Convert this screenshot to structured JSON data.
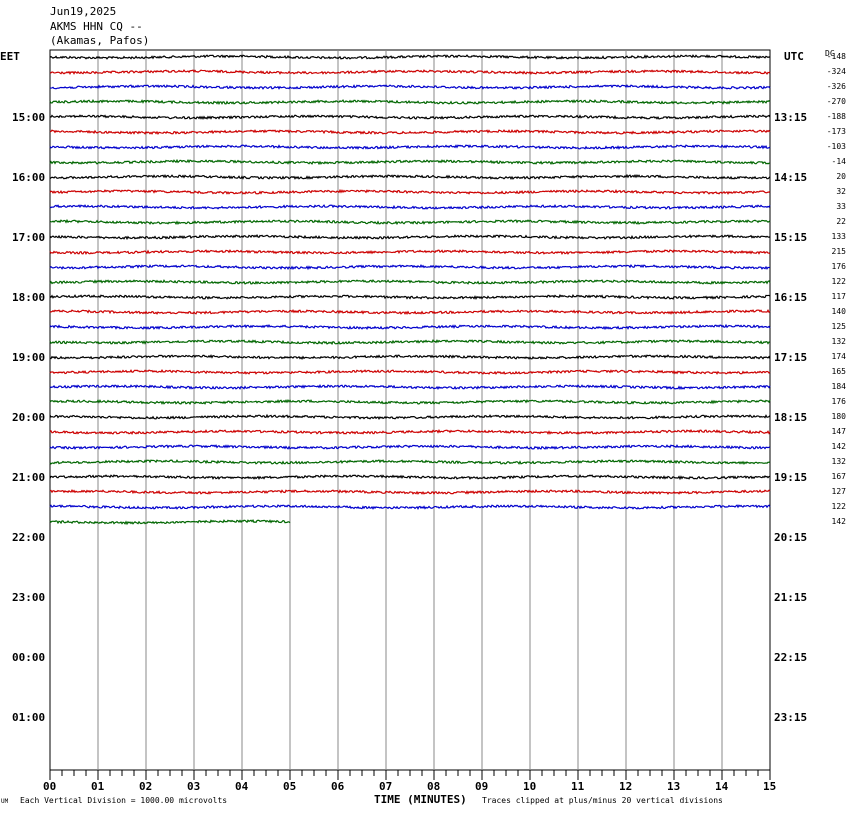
{
  "header": {
    "date": "Jun19,2025",
    "station": "AKMS HHN CQ --",
    "location": "(Akamas, Pafos)"
  },
  "left_zone_label": "EET",
  "right_zone_label": "UTC",
  "dc_label": "DC",
  "footer": {
    "left_mark": "UM",
    "scale": "Each Vertical Division = 1000.00 microvolts",
    "xlabel": "TIME (MINUTES)",
    "clip_note": "Traces clipped at plus/minus 20 vertical divisions"
  },
  "chart_data": {
    "type": "line",
    "title": "",
    "xlabel": "TIME (MINUTES)",
    "ylabel": "",
    "xlim": [
      0,
      15
    ],
    "x_ticks": [
      "00",
      "01",
      "02",
      "03",
      "04",
      "05",
      "06",
      "07",
      "08",
      "09",
      "10",
      "11",
      "12",
      "13",
      "14",
      "15"
    ],
    "left_hour_labels": [
      "15:00",
      "16:00",
      "17:00",
      "18:00",
      "19:00",
      "20:00",
      "21:00",
      "22:00",
      "23:00",
      "00:00",
      "01:00"
    ],
    "right_hour_labels": [
      "13:15",
      "14:15",
      "15:15",
      "16:15",
      "17:15",
      "18:15",
      "19:15",
      "20:15",
      "21:15",
      "22:15",
      "23:15"
    ],
    "trace_colors": [
      "#000000",
      "#cc0000",
      "#0000cc",
      "#006600"
    ],
    "dc_offsets": [
      "-148",
      "-324",
      "-326",
      "-270",
      "-188",
      "-173",
      "-103",
      "-14",
      "20",
      "32",
      "33",
      "22",
      "133",
      "215",
      "176",
      "122",
      "117",
      "140",
      "125",
      "132",
      "174",
      "165",
      "184",
      "176",
      "180",
      "147",
      "142",
      "132",
      "167",
      "127",
      "122",
      "142"
    ],
    "last_trace_end_minute": 5
  }
}
